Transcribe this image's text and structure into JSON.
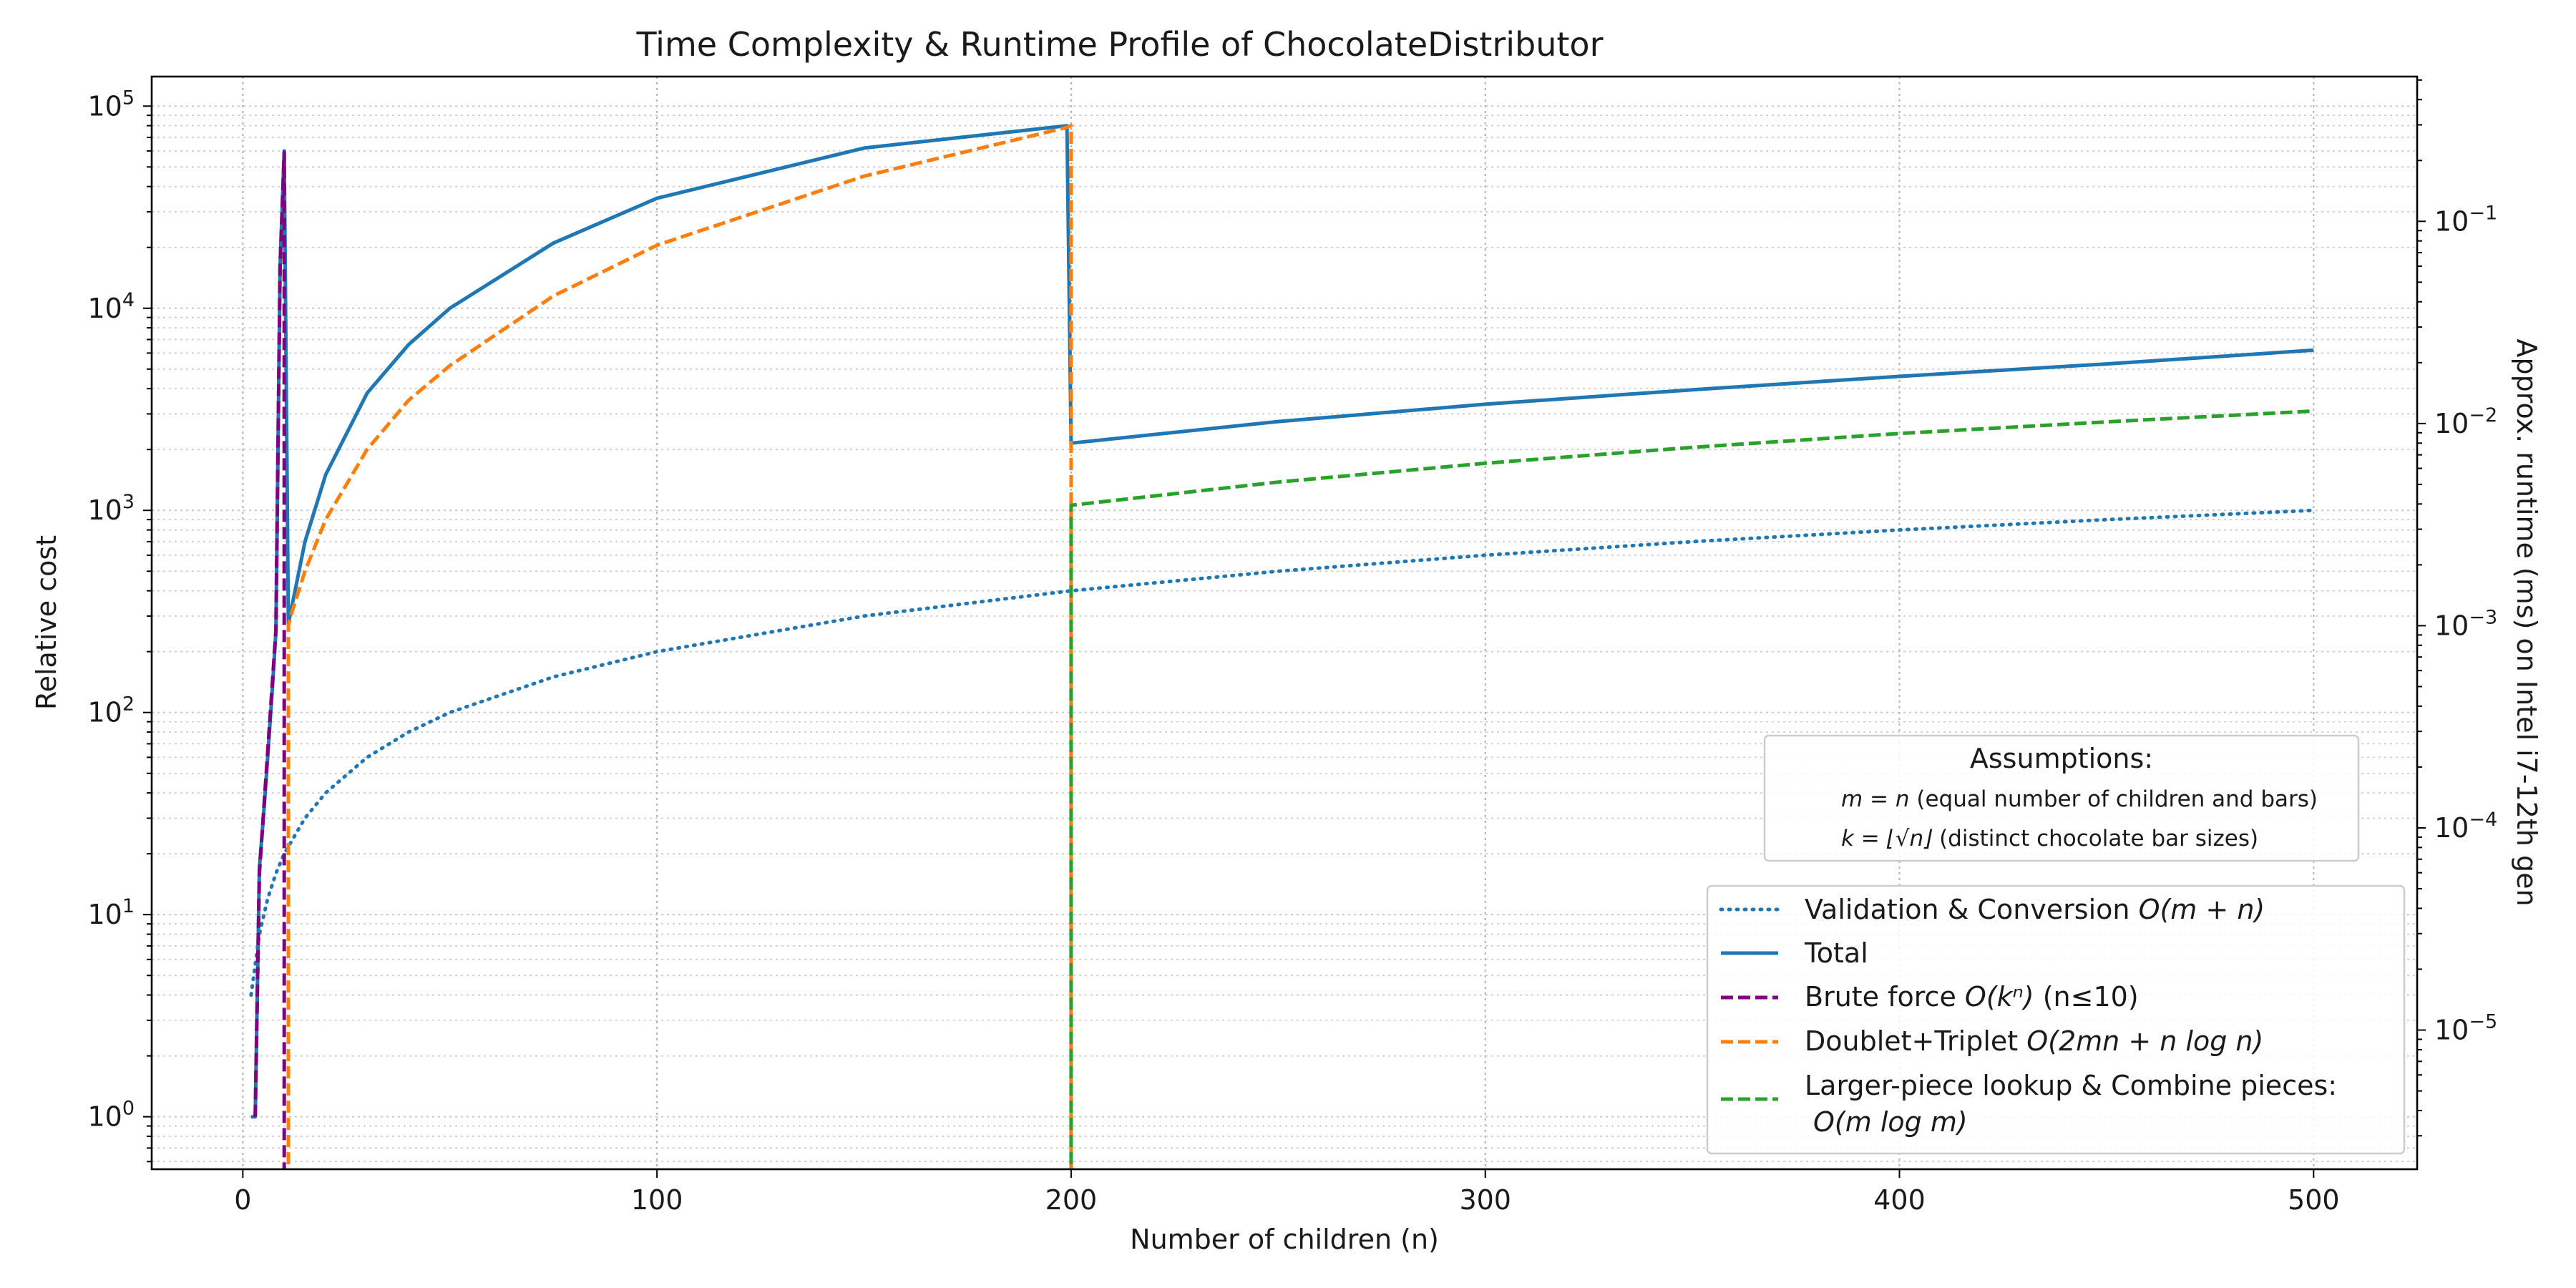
{
  "chart_data": {
    "type": "line",
    "title": "Time Complexity & Runtime Profile of ChocolateDistributor",
    "xlabel": "Number of children (n)",
    "ylabel": "Relative cost",
    "y2label": "Approx. runtime (ms) on Intel i7-12th gen",
    "xlim": [
      -22,
      525
    ],
    "ylim": [
      0.55,
      140000
    ],
    "y2lim": [
      2.05e-06,
      0.52
    ],
    "yscale": "log",
    "grid": true,
    "legend_position": "lower-right",
    "x_ticks": [
      0,
      100,
      200,
      300,
      400,
      500
    ],
    "y_ticks": [
      {
        "value": 1,
        "base": "10",
        "exp": "0"
      },
      {
        "value": 10,
        "base": "10",
        "exp": "1"
      },
      {
        "value": 100,
        "base": "10",
        "exp": "2"
      },
      {
        "value": 1000,
        "base": "10",
        "exp": "3"
      },
      {
        "value": 10000,
        "base": "10",
        "exp": "4"
      },
      {
        "value": 100000,
        "base": "10",
        "exp": "5"
      }
    ],
    "y2_ticks": [
      {
        "value": 1e-05,
        "base": "10",
        "exp": "−5"
      },
      {
        "value": 0.0001,
        "base": "10",
        "exp": "−4"
      },
      {
        "value": 0.001,
        "base": "10",
        "exp": "−3"
      },
      {
        "value": 0.01,
        "base": "10",
        "exp": "−2"
      },
      {
        "value": 0.1,
        "base": "10",
        "exp": "−1"
      }
    ],
    "series": [
      {
        "name": "Validation & Conversion O(m + n)",
        "color": "#1f77b4",
        "style": "dotted",
        "x": [
          2,
          4,
          6,
          8,
          10,
          15,
          20,
          30,
          40,
          50,
          75,
          100,
          150,
          200,
          250,
          300,
          350,
          400,
          450,
          500
        ],
        "y": [
          4,
          8,
          12,
          16,
          20,
          30,
          40,
          60,
          80,
          100,
          150,
          200,
          300,
          400,
          500,
          600,
          700,
          800,
          900,
          1000
        ]
      },
      {
        "name": "Total",
        "color": "#1f77b4",
        "style": "solid",
        "x": [
          2,
          3,
          4,
          5,
          6,
          7,
          8,
          9,
          10,
          11,
          15,
          20,
          30,
          40,
          50,
          75,
          100,
          150,
          199,
          200,
          250,
          300,
          350,
          400,
          450,
          500
        ],
        "y": [
          1,
          1,
          17,
          31,
          60,
          120,
          250,
          16000,
          60000,
          275,
          700,
          1500,
          3800,
          6600,
          10000,
          21000,
          35000,
          62000,
          80000,
          2150,
          2750,
          3350,
          3950,
          4600,
          5300,
          6200
        ]
      },
      {
        "name": "Brute force O(kⁿ) (n≤10)",
        "color": "#800080",
        "style": "dashed",
        "x": [
          3,
          4,
          5,
          6,
          7,
          8,
          9,
          10,
          10
        ],
        "y": [
          1,
          16,
          32,
          64,
          128,
          256,
          16000,
          59000,
          0.1
        ]
      },
      {
        "name": "Doublet+Triplet O(2mn + n log n)",
        "color": "#ff7f0e",
        "style": "dashed",
        "x": [
          11,
          11,
          12,
          15,
          20,
          30,
          40,
          50,
          75,
          100,
          150,
          199,
          200,
          200
        ],
        "y": [
          0.1,
          270,
          320,
          500,
          900,
          2000,
          3500,
          5200,
          11500,
          20500,
          45000,
          78500,
          80000,
          0.1
        ]
      },
      {
        "name": "Larger-piece lookup & Combine pieces:\n O(m log m)",
        "color": "#2ca02c",
        "style": "dashed",
        "x": [
          200,
          200,
          250,
          300,
          350,
          400,
          450,
          500
        ],
        "y": [
          0.1,
          1060,
          1380,
          1710,
          2050,
          2400,
          2740,
          3100
        ]
      }
    ]
  },
  "assumptions": {
    "title": "Assumptions:",
    "line1": {
      "math": "m = n",
      "text": " (equal number of children and bars)"
    },
    "line2": {
      "math": "k = ⌊√n⌋",
      "text": " (distinct chocolate bar sizes)"
    }
  },
  "legend": [
    {
      "pre": "Validation & Conversion ",
      "math": "O(m + n)",
      "post": ""
    },
    {
      "pre": "Total",
      "math": "",
      "post": ""
    },
    {
      "pre": "Brute force ",
      "math": "O(kⁿ)",
      "post": " (n≤10)"
    },
    {
      "pre": "Doublet+Triplet ",
      "math": "O(2mn + n log n)",
      "post": ""
    },
    {
      "pre": "Larger-piece lookup & Combine pieces:",
      "math": "O(m log m)",
      "post": ""
    }
  ]
}
